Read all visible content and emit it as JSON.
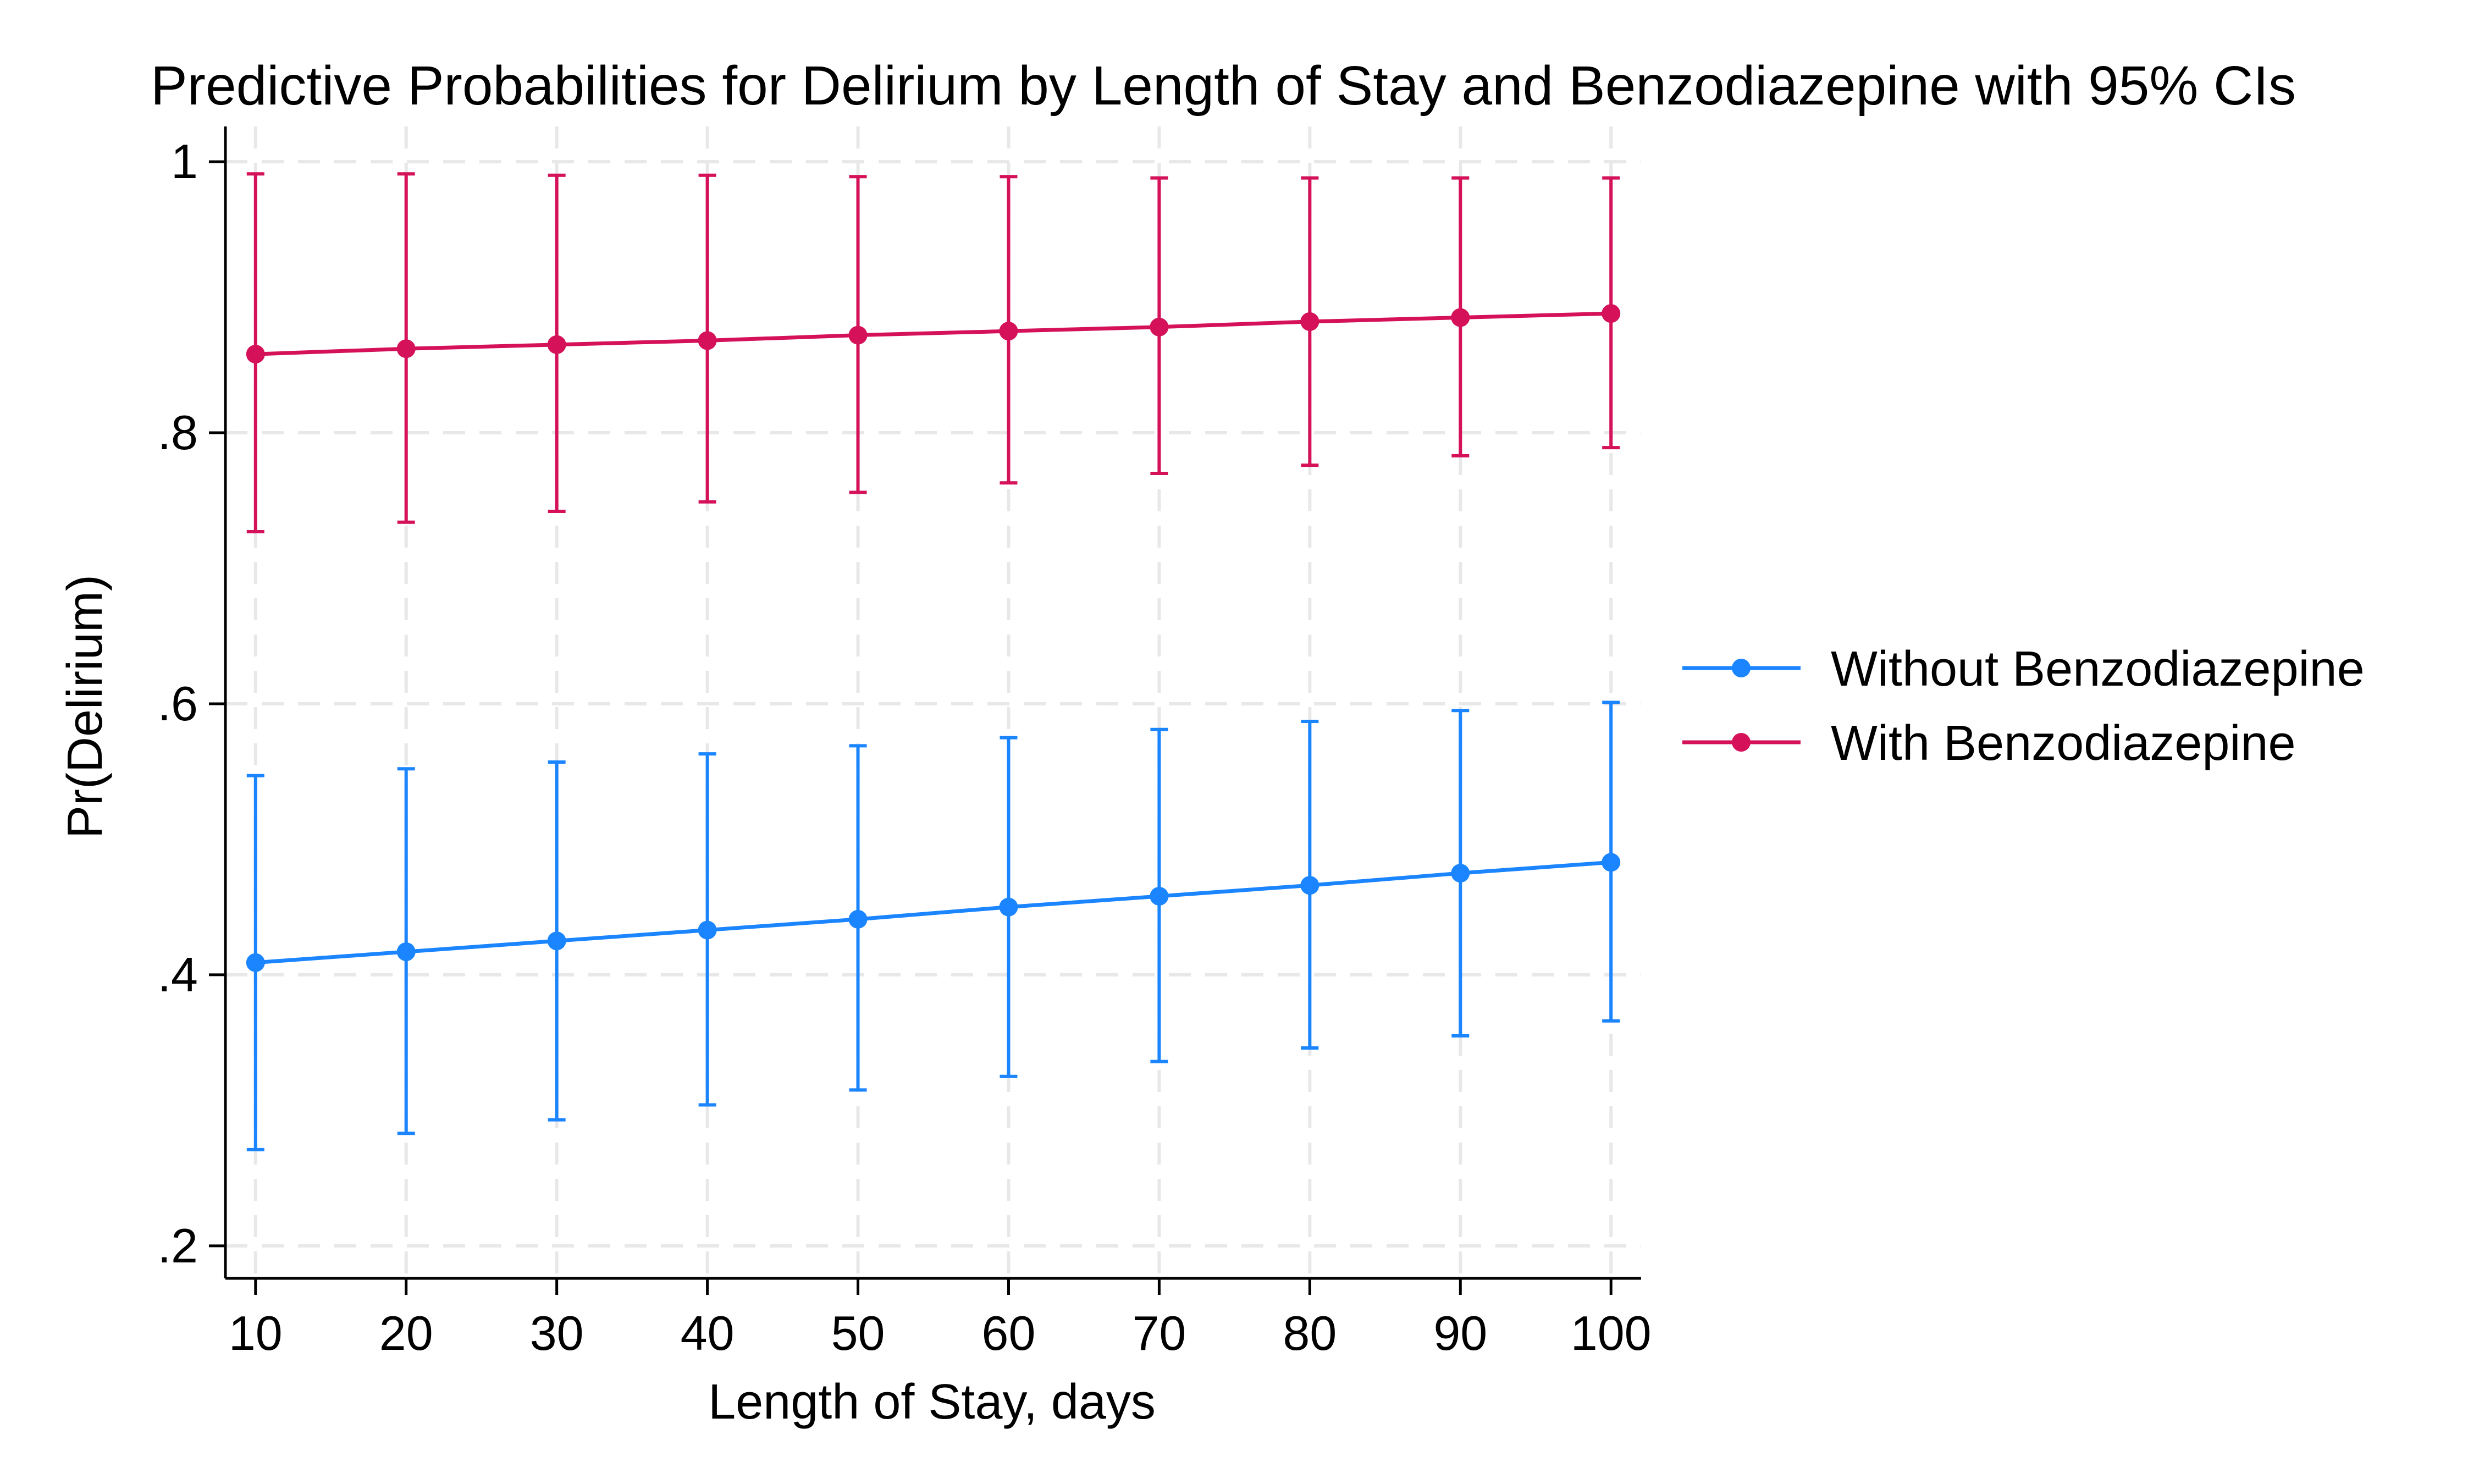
{
  "chart_data": {
    "type": "line",
    "title": "Predictive Probabilities for Delirium by Length of Stay and Benzodiazepine with 95% CIs",
    "xlabel": "Length of Stay, days",
    "ylabel": "Pr(Delirium)",
    "x": [
      10,
      20,
      30,
      40,
      50,
      60,
      70,
      80,
      90,
      100
    ],
    "xticks": [
      "10",
      "20",
      "30",
      "40",
      "50",
      "60",
      "70",
      "80",
      "90",
      "100"
    ],
    "yticks": [
      {
        "value": 0.2,
        "label": ".2"
      },
      {
        "value": 0.4,
        "label": ".4"
      },
      {
        "value": 0.6,
        "label": ".6"
      },
      {
        "value": 0.8,
        "label": ".8"
      },
      {
        "value": 1.0,
        "label": "1"
      }
    ],
    "xlim": [
      8,
      102
    ],
    "ylim": [
      0.176,
      1.026
    ],
    "grid": true,
    "legend_position": "right",
    "series": [
      {
        "name": "Without Benzodiazepine",
        "color": "#1a85ff",
        "values": [
          0.409,
          0.417,
          0.425,
          0.433,
          0.441,
          0.45,
          0.458,
          0.466,
          0.475,
          0.483
        ],
        "ci_lower": [
          0.271,
          0.283,
          0.293,
          0.304,
          0.315,
          0.325,
          0.336,
          0.346,
          0.355,
          0.366
        ],
        "ci_upper": [
          0.547,
          0.552,
          0.557,
          0.563,
          0.569,
          0.575,
          0.581,
          0.587,
          0.595,
          0.601
        ]
      },
      {
        "name": "With Benzodiazepine",
        "color": "#d41159",
        "values": [
          0.858,
          0.862,
          0.865,
          0.868,
          0.872,
          0.875,
          0.878,
          0.882,
          0.885,
          0.888
        ],
        "ci_lower": [
          0.727,
          0.734,
          0.742,
          0.749,
          0.756,
          0.763,
          0.77,
          0.776,
          0.783,
          0.789
        ],
        "ci_upper": [
          0.991,
          0.991,
          0.99,
          0.99,
          0.989,
          0.989,
          0.988,
          0.988,
          0.988,
          0.988
        ]
      }
    ]
  }
}
